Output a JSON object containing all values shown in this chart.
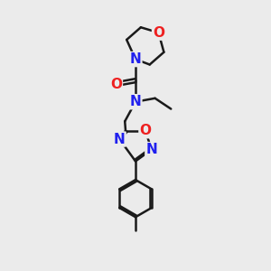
{
  "bg_color": "#ebebeb",
  "bond_color": "#1a1a1a",
  "N_color": "#2020ee",
  "O_color": "#ee2020",
  "lw": 1.8,
  "fs": 11,
  "xlim": [
    0,
    10
  ],
  "ylim": [
    0,
    15
  ]
}
